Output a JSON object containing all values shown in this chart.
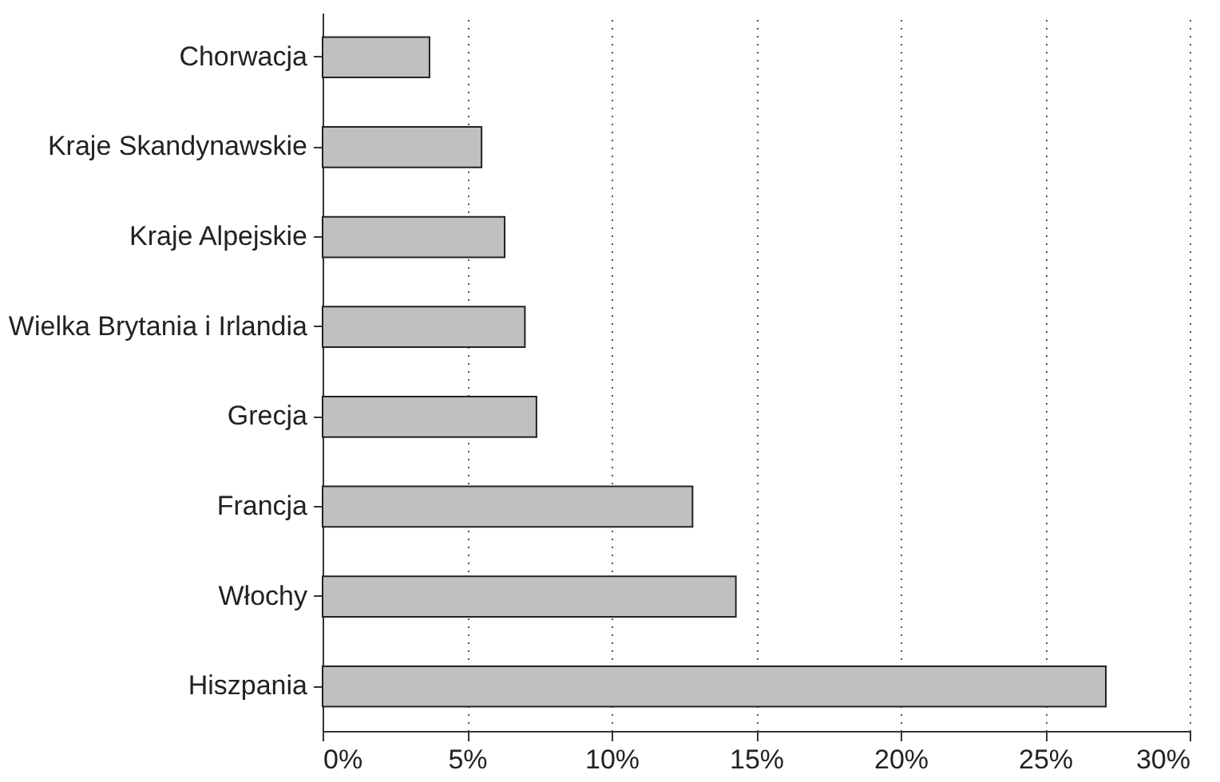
{
  "chart_data": {
    "type": "bar",
    "orientation": "horizontal",
    "categories": [
      "Chorwacja",
      "Kraje Skandynawskie",
      "Kraje Alpejskie",
      "Wielka Brytania i Irlandia",
      "Grecja",
      "Francja",
      "Włochy",
      "Hiszpania"
    ],
    "values": [
      3.7,
      5.5,
      6.3,
      7.0,
      7.4,
      12.8,
      14.3,
      27.1
    ],
    "color": "#c0c0c0",
    "xlim": [
      0,
      30
    ],
    "xticks": [
      {
        "value": 0,
        "label": "0%"
      },
      {
        "value": 5,
        "label": "5%"
      },
      {
        "value": 10,
        "label": "10%"
      },
      {
        "value": 15,
        "label": "15%"
      },
      {
        "value": 20,
        "label": "20%"
      },
      {
        "value": 25,
        "label": "25%"
      },
      {
        "value": 30,
        "label": "30%"
      }
    ],
    "grid": "x"
  }
}
